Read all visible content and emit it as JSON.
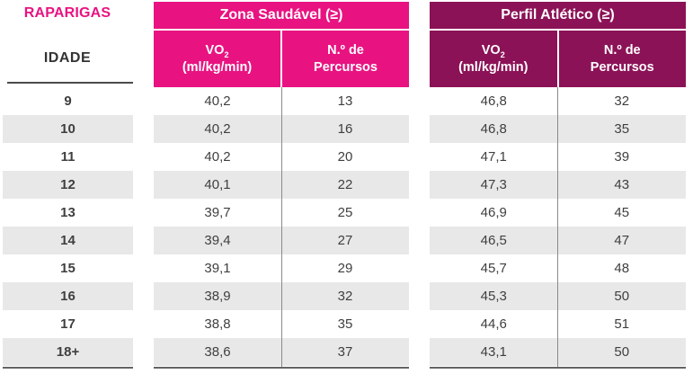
{
  "colors": {
    "pink": "#e81381",
    "dark_magenta": "#8c1257",
    "row_shade": "#e8e8e8",
    "body_text": "#3f3f3f",
    "header_text": "#ffffff",
    "rule_dark": "#4b4b4b",
    "rule_bottom": "#636363",
    "divider": "#8a8a8a"
  },
  "table": {
    "group_label": "RAPARIGAS",
    "age_header": "IDADE",
    "sections": [
      {
        "id": "zona-saudavel",
        "title": "Zona Saudável (≥)",
        "columns": [
          {
            "label_main": "VO",
            "label_sub": "2",
            "label_line2": "(ml/kg/min)"
          },
          {
            "label_line1": "N.º de",
            "label_line2": "Percursos"
          }
        ]
      },
      {
        "id": "perfil-atletico",
        "title": "Perfil Atlético (≥)",
        "columns": [
          {
            "label_main": "VO",
            "label_sub": "2",
            "label_line2": "(ml/kg/min)"
          },
          {
            "label_line1": "N.º de",
            "label_line2": "Percursos"
          }
        ]
      }
    ],
    "rows": [
      {
        "age": "9",
        "zs_vo2": "40,2",
        "zs_percursos": "13",
        "pa_vo2": "46,8",
        "pa_percursos": "32"
      },
      {
        "age": "10",
        "zs_vo2": "40,2",
        "zs_percursos": "16",
        "pa_vo2": "46,8",
        "pa_percursos": "35"
      },
      {
        "age": "11",
        "zs_vo2": "40,2",
        "zs_percursos": "20",
        "pa_vo2": "47,1",
        "pa_percursos": "39"
      },
      {
        "age": "12",
        "zs_vo2": "40,1",
        "zs_percursos": "22",
        "pa_vo2": "47,3",
        "pa_percursos": "43"
      },
      {
        "age": "13",
        "zs_vo2": "39,7",
        "zs_percursos": "25",
        "pa_vo2": "46,9",
        "pa_percursos": "45"
      },
      {
        "age": "14",
        "zs_vo2": "39,4",
        "zs_percursos": "27",
        "pa_vo2": "46,5",
        "pa_percursos": "47"
      },
      {
        "age": "15",
        "zs_vo2": "39,1",
        "zs_percursos": "29",
        "pa_vo2": "45,7",
        "pa_percursos": "48"
      },
      {
        "age": "16",
        "zs_vo2": "38,9",
        "zs_percursos": "32",
        "pa_vo2": "45,3",
        "pa_percursos": "50"
      },
      {
        "age": "17",
        "zs_vo2": "38,8",
        "zs_percursos": "35",
        "pa_vo2": "44,6",
        "pa_percursos": "51"
      },
      {
        "age": "18+",
        "zs_vo2": "38,6",
        "zs_percursos": "37",
        "pa_vo2": "43,1",
        "pa_percursos": "50"
      }
    ]
  }
}
